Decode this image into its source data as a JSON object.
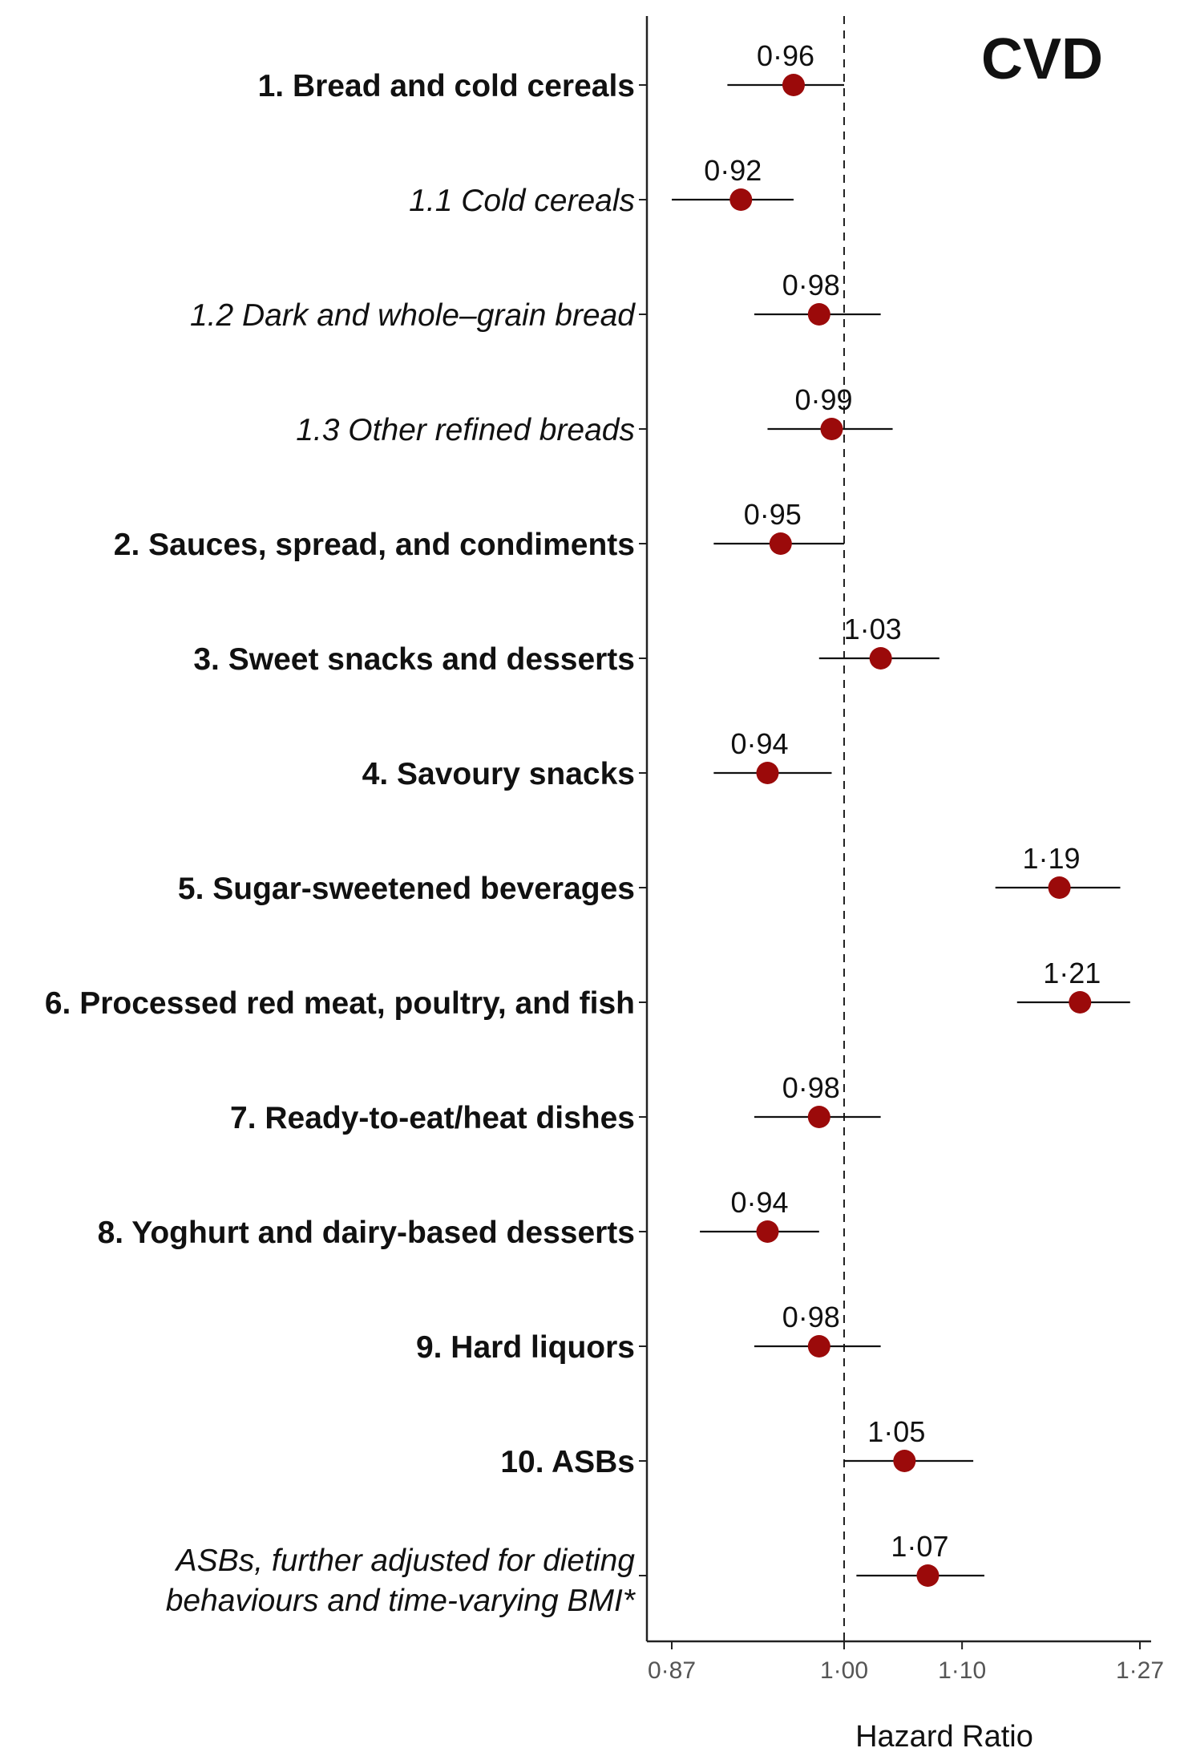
{
  "chart_data": {
    "type": "forest",
    "title": "CVD",
    "xlabel": "Hazard Ratio",
    "x_scale": "log",
    "xlim": [
      0.865,
      1.28
    ],
    "x_ticks": [
      {
        "value": 0.87,
        "label": "0·87"
      },
      {
        "value": 1.0,
        "label": "1·00"
      },
      {
        "value": 1.1,
        "label": "1·10"
      },
      {
        "value": 1.27,
        "label": "1·27"
      }
    ],
    "reference_line": 1.0,
    "point_color": "#9b0a0a",
    "rows": [
      {
        "label": "1.  Bread and cold cereals",
        "style": "bold",
        "hr": 0.96,
        "hr_label": "0·96",
        "lower": 0.91,
        "upper": 1.0
      },
      {
        "label": "1.1 Cold cereals",
        "style": "italic",
        "hr": 0.92,
        "hr_label": "0·92",
        "lower": 0.87,
        "upper": 0.96
      },
      {
        "label": "1.2 Dark and whole–grain bread",
        "style": "italic",
        "hr": 0.98,
        "hr_label": "0·98",
        "lower": 0.93,
        "upper": 1.03
      },
      {
        "label": "1.3 Other refined breads",
        "style": "italic",
        "hr": 0.99,
        "hr_label": "0·99",
        "lower": 0.94,
        "upper": 1.04
      },
      {
        "label": "2. Sauces, spread, and condiments",
        "style": "bold",
        "hr": 0.95,
        "hr_label": "0·95",
        "lower": 0.9,
        "upper": 1.0
      },
      {
        "label": "3. Sweet snacks and desserts",
        "style": "bold",
        "hr": 1.03,
        "hr_label": "1·03",
        "lower": 0.98,
        "upper": 1.08
      },
      {
        "label": "4. Savoury snacks",
        "style": "bold",
        "hr": 0.94,
        "hr_label": "0·94",
        "lower": 0.9,
        "upper": 0.99
      },
      {
        "label": "5. Sugar-sweetened beverages",
        "style": "bold",
        "hr": 1.19,
        "hr_label": "1·19",
        "lower": 1.13,
        "upper": 1.25
      },
      {
        "label": "6. Processed red meat, poultry, and fish",
        "style": "bold",
        "hr": 1.21,
        "hr_label": "1·21",
        "lower": 1.15,
        "upper": 1.26
      },
      {
        "label": "7. Ready-to-eat/heat dishes",
        "style": "bold",
        "hr": 0.98,
        "hr_label": "0·98",
        "lower": 0.93,
        "upper": 1.03
      },
      {
        "label": "8. Yoghurt and dairy-based desserts",
        "style": "bold",
        "hr": 0.94,
        "hr_label": "0·94",
        "lower": 0.89,
        "upper": 0.98
      },
      {
        "label": "9. Hard liquors",
        "style": "bold",
        "hr": 0.98,
        "hr_label": "0·98",
        "lower": 0.93,
        "upper": 1.03
      },
      {
        "label": "10. ASBs",
        "style": "bold",
        "hr": 1.05,
        "hr_label": "1·05",
        "lower": 1.0,
        "upper": 1.11
      },
      {
        "label": "ASBs, further adjusted for dieting behaviours and time-varying BMI*",
        "label_lines": [
          "ASBs, further adjusted for dieting",
          "behaviours and time-varying BMI*"
        ],
        "style": "italic",
        "hr": 1.07,
        "hr_label": "1·07",
        "lower": 1.01,
        "upper": 1.12
      }
    ]
  }
}
